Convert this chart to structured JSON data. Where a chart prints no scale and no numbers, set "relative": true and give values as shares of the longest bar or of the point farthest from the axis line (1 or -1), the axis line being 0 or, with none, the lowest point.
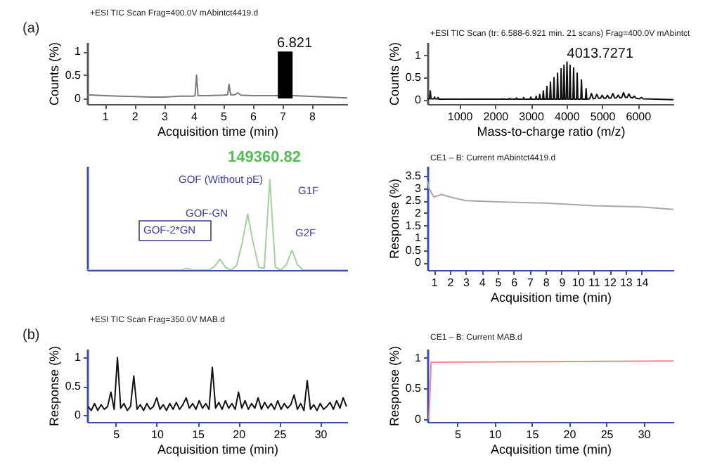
{
  "chart_data": [
    {
      "type": "line",
      "title": "+ESI TIC Scan Frag=400.0V mAbintct4419.d",
      "xlabel": "Acquisition time (min)",
      "ylabel": "Counts (%)",
      "x": [
        0.4,
        1,
        1.5,
        2,
        2.5,
        3,
        3.5,
        4,
        4.05,
        4.1,
        4.15,
        4.5,
        5,
        5.15,
        5.2,
        5.25,
        5.4,
        5.5,
        5.6,
        6,
        6.5,
        6.8,
        7.4,
        7.8,
        8.5,
        9.2
      ],
      "series": [
        {
          "color": "#7a7a7a",
          "values": [
            0.08,
            0.06,
            0.05,
            0.04,
            0.03,
            0.03,
            0.05,
            0.05,
            0.06,
            0.5,
            0.06,
            0.06,
            0.07,
            0.08,
            0.3,
            0.08,
            0.08,
            0.12,
            0.07,
            0.06,
            0.06,
            0.06,
            0.06,
            0.05,
            0.03,
            0.01
          ]
        },
        {
          "type": "area",
          "color": "#000000",
          "x": [
            6.85,
            7.35
          ],
          "values": [
            1,
            1
          ]
        }
      ],
      "xlim": [
        0.4,
        9.2
      ],
      "xticks": [
        1,
        2,
        3,
        4,
        5,
        6,
        7,
        8
      ],
      "ylim": [
        -0.12,
        1.2
      ],
      "yticks": [
        0,
        0.5,
        1
      ],
      "annotations": [
        "(a)",
        {
          "text": "6.821",
          "x": 6.821,
          "y": 1
        }
      ]
    },
    {
      "type": "line",
      "title": "+ESI TIC Scan (tr: 6.588-6.921 min. 21 scans) Frag=400.0V mAbintct",
      "xlabel": "Mass-to-charge ratio (m/z)",
      "ylabel": "Counts (%)",
      "x": [
        100,
        160,
        180,
        200,
        280,
        300,
        320,
        380,
        400,
        420,
        2180,
        2200,
        2220,
        2380,
        2400,
        2420,
        2580,
        2600,
        2620,
        2780,
        2800,
        2820,
        2980,
        3000,
        3020,
        3130,
        3150,
        3170,
        3230,
        3250,
        3270,
        3330,
        3350,
        3370,
        3430,
        3450,
        3470,
        3530,
        3550,
        3570,
        3630,
        3650,
        3670,
        3730,
        3750,
        3770,
        3830,
        3850,
        3870,
        3910,
        3930,
        3950,
        3990,
        4013.7271,
        4035,
        4080,
        4100,
        4120,
        4180,
        4200,
        4220,
        4280,
        4300,
        4320,
        4400,
        4420,
        4440,
        4530,
        4550,
        4570,
        4650,
        4700,
        4750,
        4800,
        4850,
        4900,
        4950,
        5000,
        5050,
        5100,
        5150,
        5200,
        5250,
        5300,
        5350,
        5400,
        5450,
        5500,
        5550,
        5600,
        5650,
        5700,
        5750,
        5800,
        5850,
        5900,
        5950,
        6050,
        6100,
        6150,
        6500,
        7000
      ],
      "series": [
        {
          "color": "#111111",
          "values": [
            0.02,
            0.02,
            0.2,
            0.02,
            0.02,
            0.06,
            0.02,
            0.02,
            0.05,
            0.01,
            0.01,
            0.02,
            0.01,
            0.01,
            0.03,
            0.01,
            0.01,
            0.04,
            0.01,
            0.01,
            0.05,
            0.01,
            0.01,
            0.06,
            0.01,
            0.01,
            0.08,
            0.01,
            0.01,
            0.12,
            0.01,
            0.01,
            0.2,
            0.01,
            0.01,
            0.3,
            0.01,
            0.01,
            0.4,
            0.01,
            0.01,
            0.5,
            0.01,
            0.01,
            0.6,
            0.01,
            0.01,
            0.7,
            0.01,
            0.01,
            0.78,
            0.01,
            0.01,
            0.85,
            0.01,
            0.01,
            0.78,
            0.01,
            0.01,
            0.72,
            0.01,
            0.01,
            0.6,
            0.01,
            0.01,
            0.45,
            0.01,
            0.01,
            0.25,
            0.01,
            0.02,
            0.14,
            0.02,
            0.03,
            0.12,
            0.03,
            0.03,
            0.1,
            0.03,
            0.03,
            0.1,
            0.03,
            0.04,
            0.14,
            0.04,
            0.04,
            0.1,
            0.04,
            0.05,
            0.16,
            0.05,
            0.05,
            0.13,
            0.05,
            0.04,
            0.08,
            0.03,
            0.02,
            0.05,
            0.02,
            0.01,
            0
          ]
        }
      ],
      "xlim": [
        100,
        7000
      ],
      "xticks": [
        1000,
        2000,
        3000,
        4000,
        5000,
        6000
      ],
      "ylim": [
        -0.1,
        1.3
      ],
      "yticks": [
        0,
        0.5,
        1
      ],
      "annotations": [
        {
          "text": "4013.7271",
          "x": 4013.7271,
          "y": 0.85
        }
      ]
    },
    {
      "type": "line",
      "relative": true,
      "categories": [
        null,
        null,
        null,
        null,
        null,
        null,
        null,
        null,
        null,
        null,
        null,
        null,
        null,
        null,
        null,
        null,
        null,
        null,
        null,
        null,
        null,
        null,
        null,
        null,
        null,
        null,
        null,
        null,
        null,
        null,
        null,
        null,
        null,
        null,
        null,
        null,
        null,
        null,
        null,
        null,
        null,
        null,
        null,
        null,
        null,
        null,
        null,
        null
      ],
      "series": [
        {
          "color": "#9ed49a",
          "values": [
            0,
            0,
            0,
            0,
            0,
            0,
            0,
            0,
            0,
            0,
            0,
            0,
            0,
            0,
            0,
            0,
            0,
            0,
            0.02,
            0,
            0,
            0,
            0,
            0.04,
            0.12,
            0.03,
            0,
            0.05,
            0.3,
            0.62,
            0.3,
            0.03,
            0.02,
            1,
            0.03,
            0,
            0.06,
            0.22,
            0.06,
            0,
            0,
            0,
            0,
            0,
            0,
            0,
            0,
            0
          ]
        }
      ],
      "annotations": [
        "GOF-2*GN",
        "GOF-GN",
        "GOF (Without pE)",
        "149360.82",
        "G1F",
        "G2F"
      ]
    },
    {
      "type": "line",
      "title": "CE1 – B: Current mAbintct4419.d",
      "xlabel": "Acquisition time (min)",
      "ylabel": "Response (%)",
      "x": [
        0.6,
        0.7,
        1.0,
        1.5,
        2,
        3,
        5,
        8,
        11,
        14,
        16
      ],
      "series": [
        {
          "color": "#a8a8a8",
          "values": [
            3.3,
            3.0,
            2.65,
            2.75,
            2.65,
            2.5,
            2.45,
            2.4,
            2.3,
            2.25,
            2.15
          ]
        }
      ],
      "xlim": [
        0.6,
        16
      ],
      "xticks": [
        1,
        2,
        3,
        4,
        5,
        6,
        7,
        8,
        9,
        10,
        11,
        12,
        13,
        14
      ],
      "ylim": [
        -0.3,
        3.9
      ],
      "yticks": [
        0,
        0.5,
        1,
        1.5,
        2,
        2.5,
        3,
        3.5
      ]
    },
    {
      "type": "line",
      "title": "+ESI TIC Scan Frag=350.0V MAB.d",
      "xlabel": "Acquisition time (min)",
      "ylabel": "Response (%)",
      "x": [
        1.6,
        2,
        2.4,
        2.8,
        3.2,
        3.6,
        4,
        4.4,
        4.8,
        5.2,
        5.6,
        6,
        6.4,
        6.8,
        7.2,
        7.6,
        8,
        8.4,
        8.8,
        9.2,
        9.6,
        10,
        10.4,
        10.8,
        11.2,
        11.6,
        12,
        12.4,
        12.8,
        13.2,
        13.6,
        14,
        14.4,
        14.8,
        15.2,
        15.6,
        16,
        16.4,
        16.8,
        17.2,
        17.6,
        18,
        18.4,
        18.8,
        19.2,
        19.6,
        20,
        20.4,
        20.8,
        21.2,
        21.6,
        22,
        22.4,
        22.8,
        23.2,
        23.6,
        24,
        24.4,
        24.8,
        25.2,
        25.6,
        26,
        26.4,
        26.8,
        27.2,
        27.6,
        28,
        28.4,
        28.8,
        29.2,
        29.6,
        30,
        30.4,
        30.8,
        31.2,
        31.6,
        32,
        32.4,
        32.8,
        33.2
      ],
      "series": [
        {
          "color": "#111111",
          "values": [
            0.15,
            0.08,
            0.2,
            0.08,
            0.18,
            0.1,
            0.15,
            0.4,
            0.1,
            1,
            0.12,
            0.2,
            0.08,
            0.15,
            0.68,
            0.1,
            0.18,
            0.08,
            0.2,
            0.1,
            0.15,
            0.3,
            0.1,
            0.18,
            0.08,
            0.2,
            0.1,
            0.22,
            0.1,
            0.18,
            0.3,
            0.12,
            0.2,
            0.1,
            0.25,
            0.12,
            0.2,
            0.1,
            0.83,
            0.12,
            0.22,
            0.1,
            0.25,
            0.12,
            0.2,
            0.1,
            0.4,
            0.12,
            0.25,
            0.1,
            0.2,
            0.12,
            0.3,
            0.1,
            0.22,
            0.12,
            0.2,
            0.1,
            0.25,
            0.1,
            0.2,
            0.12,
            0.18,
            0.35,
            0.1,
            0.2,
            0.08,
            0.6,
            0.1,
            0.18,
            0.08,
            0.2,
            0.1,
            0.15,
            0.22,
            0.1,
            0.25,
            0.12,
            0.3,
            0.15
          ]
        }
      ],
      "xlim": [
        1.5,
        33.3
      ],
      "xticks": [
        5,
        10,
        15,
        20,
        25,
        30
      ],
      "ylim": [
        -0.12,
        1.15
      ],
      "yticks": [
        0,
        0.5,
        1
      ],
      "annotations": [
        "(b)"
      ]
    },
    {
      "type": "line",
      "title": "CE1 – B: Current MAB.d",
      "xlabel": "Acquisition time (min)",
      "ylabel": "Response (%)",
      "x": [
        1.2,
        1.5,
        2,
        34
      ],
      "series": [
        {
          "color": "#f08a8a",
          "values": [
            0,
            0.93,
            0.93,
            0.95
          ]
        }
      ],
      "xlim": [
        1,
        34
      ],
      "xticks": [
        5,
        10,
        15,
        20,
        25,
        30
      ],
      "ylim": [
        -0.05,
        1.15
      ],
      "yticks": [
        0,
        0.5,
        1
      ]
    }
  ]
}
